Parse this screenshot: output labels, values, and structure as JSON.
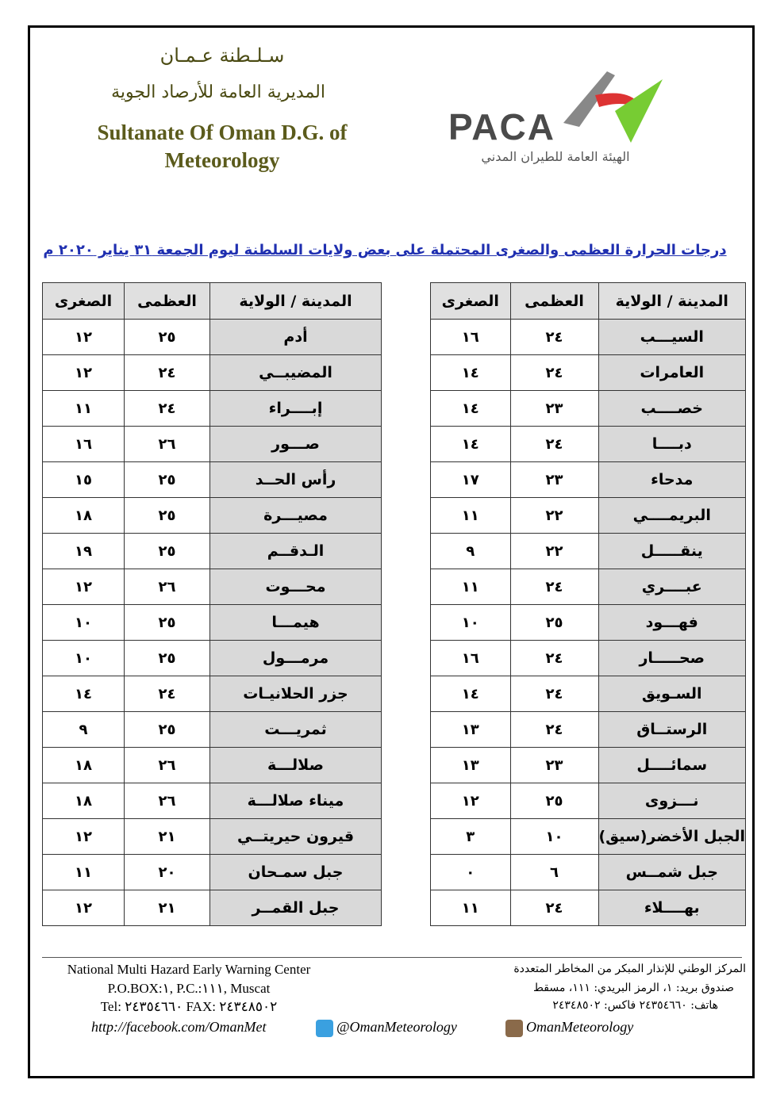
{
  "header": {
    "ar_line1": "سـلـطنة عـمـان",
    "ar_line2": "المديرية العامة للأرصاد الجوية",
    "en_title": "Sultanate Of Oman D.G. of Meteorology",
    "logo_text": "PACA",
    "logo_ar": "الهيئة العامة للطيران المدني"
  },
  "title": "درجات الحرارة العظمى والصغرى المحتملة على بعض ولايات السلطنة ليوم الجمعة ٣١ يناير ٢٠٢٠ م",
  "columns": {
    "city": "المدينة / الولاية",
    "max": "العظمى",
    "min": "الصغرى"
  },
  "right_table": [
    {
      "city": "السيـــب",
      "max": "٢٤",
      "min": "١٦"
    },
    {
      "city": "العامرات",
      "max": "٢٤",
      "min": "١٤"
    },
    {
      "city": "خصــــب",
      "max": "٢٣",
      "min": "١٤"
    },
    {
      "city": "دبــــا",
      "max": "٢٤",
      "min": "١٤"
    },
    {
      "city": "مدحاء",
      "max": "٢٣",
      "min": "١٧"
    },
    {
      "city": "البريمــــي",
      "max": "٢٢",
      "min": "١١"
    },
    {
      "city": "ينقـــــل",
      "max": "٢٢",
      "min": "٩"
    },
    {
      "city": "عبــــري",
      "max": "٢٤",
      "min": "١١"
    },
    {
      "city": "فهـــود",
      "max": "٢٥",
      "min": "١٠"
    },
    {
      "city": "صحـــــار",
      "max": "٢٤",
      "min": "١٦"
    },
    {
      "city": "السـويق",
      "max": "٢٤",
      "min": "١٤"
    },
    {
      "city": "الرستــاق",
      "max": "٢٤",
      "min": "١٣"
    },
    {
      "city": "سمائــــل",
      "max": "٢٣",
      "min": "١٣"
    },
    {
      "city": "نـــزوى",
      "max": "٢٥",
      "min": "١٢"
    },
    {
      "city": "الجبل الأخضر(سيق)",
      "max": "١٠",
      "min": "٣"
    },
    {
      "city": "جبل شمــس",
      "max": "٦",
      "min": "٠"
    },
    {
      "city": "بهــــلاء",
      "max": "٢٤",
      "min": "١١"
    }
  ],
  "left_table": [
    {
      "city": "أدم",
      "max": "٢٥",
      "min": "١٢"
    },
    {
      "city": "المضيبــي",
      "max": "٢٤",
      "min": "١٢"
    },
    {
      "city": "إبــــراء",
      "max": "٢٤",
      "min": "١١"
    },
    {
      "city": "صـــور",
      "max": "٢٦",
      "min": "١٦"
    },
    {
      "city": "رأس الحــد",
      "max": "٢٥",
      "min": "١٥"
    },
    {
      "city": "مصيـــرة",
      "max": "٢٥",
      "min": "١٨"
    },
    {
      "city": "الـدقــم",
      "max": "٢٥",
      "min": "١٩"
    },
    {
      "city": "محـــوت",
      "max": "٢٦",
      "min": "١٢"
    },
    {
      "city": "هيمـــا",
      "max": "٢٥",
      "min": "١٠"
    },
    {
      "city": "مرمـــول",
      "max": "٢٥",
      "min": "١٠"
    },
    {
      "city": "جزر الحلانيـات",
      "max": "٢٤",
      "min": "١٤"
    },
    {
      "city": "ثمريـــت",
      "max": "٢٥",
      "min": "٩"
    },
    {
      "city": "صلالـــة",
      "max": "٢٦",
      "min": "١٨"
    },
    {
      "city": "ميناء صلالـــة",
      "max": "٢٦",
      "min": "١٨"
    },
    {
      "city": "قيرون حيريتــي",
      "max": "٢١",
      "min": "١٢"
    },
    {
      "city": "جبل سمـحان",
      "max": "٢٠",
      "min": "١١"
    },
    {
      "city": "جبل القمــر",
      "max": "٢١",
      "min": "١٢"
    }
  ],
  "footer": {
    "en": [
      "National Multi Hazard Early Warning Center",
      "P.O.BOX:١, P.C.:١١١, Muscat",
      "Tel: ٢٤٣٥٤٦٦٠ FAX: ٢٤٣٤٨٥٠٢"
    ],
    "ar": [
      "المركز الوطني للإنذار المبكر من المخاطر المتعددة",
      "صندوق بريد: ١، الرمز البريدي: ١١١، مسقط",
      "هاتف: ٢٤٣٥٤٦٦٠ فاكس: ٢٤٣٤٨٥٠٢"
    ],
    "facebook": "http://facebook.com/OmanMet",
    "twitter": "@OmanMeteorology",
    "instagram": "OmanMeteorology"
  },
  "colors": {
    "title": "#1f2fb0",
    "header_text": "#5b5b1c",
    "city_cell": "#d9d9d9"
  }
}
